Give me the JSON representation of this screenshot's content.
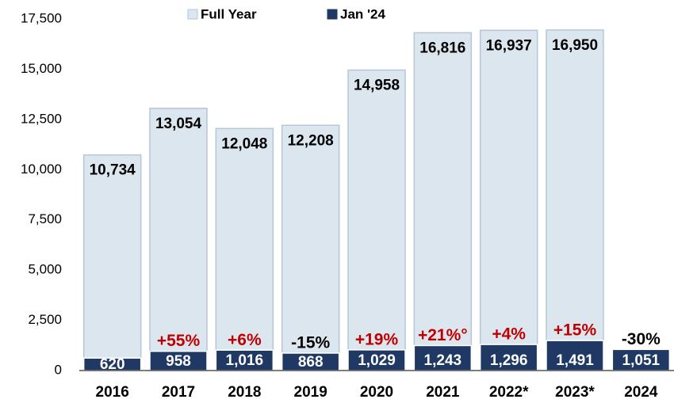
{
  "chart_data": {
    "type": "bar",
    "categories": [
      "2016",
      "2017",
      "2018",
      "2019",
      "2020",
      "2021",
      "2022*",
      "2023*",
      "2024"
    ],
    "series": [
      {
        "name": "Full Year",
        "color": "#dce6ee",
        "stroke": "#b4c7d9",
        "values": [
          10734,
          13054,
          12048,
          12208,
          14958,
          16816,
          16937,
          16950,
          null
        ],
        "value_labels": [
          "10,734",
          "13,054",
          "12,048",
          "12,208",
          "14,958",
          "16,816",
          "16,937",
          "16,950",
          null
        ],
        "label_color": "#000000"
      },
      {
        "name": "Jan '24",
        "color": "#1f3864",
        "stroke": "#ffffff",
        "values": [
          620,
          958,
          1016,
          868,
          1029,
          1243,
          1296,
          1491,
          1051
        ],
        "value_labels": [
          "620",
          "958",
          "1,016",
          "868",
          "1,029",
          "1,243",
          "1,296",
          "1,491",
          "1,051"
        ],
        "label_color": "#ffffff"
      }
    ],
    "change_labels": [
      null,
      "+55%",
      "+6%",
      "-15%",
      "+19%",
      "+21%°",
      "+4%",
      "+15%",
      "-30%"
    ],
    "positive_color": "#c00000",
    "negative_color": "#000000",
    "ylim": [
      0,
      17500
    ],
    "yticks": [
      0,
      {
        "value": 2500,
        "label": "2,500"
      },
      {
        "value": 5000,
        "label": "5,000"
      },
      {
        "value": 7500,
        "label": "7,500"
      },
      {
        "value": 10000,
        "label": "10,000"
      },
      {
        "value": 12500,
        "label": "12,500"
      },
      {
        "value": 15000,
        "label": "15,000"
      },
      {
        "value": 17500,
        "label": "17,500"
      }
    ],
    "grid": false,
    "legend": "top"
  }
}
